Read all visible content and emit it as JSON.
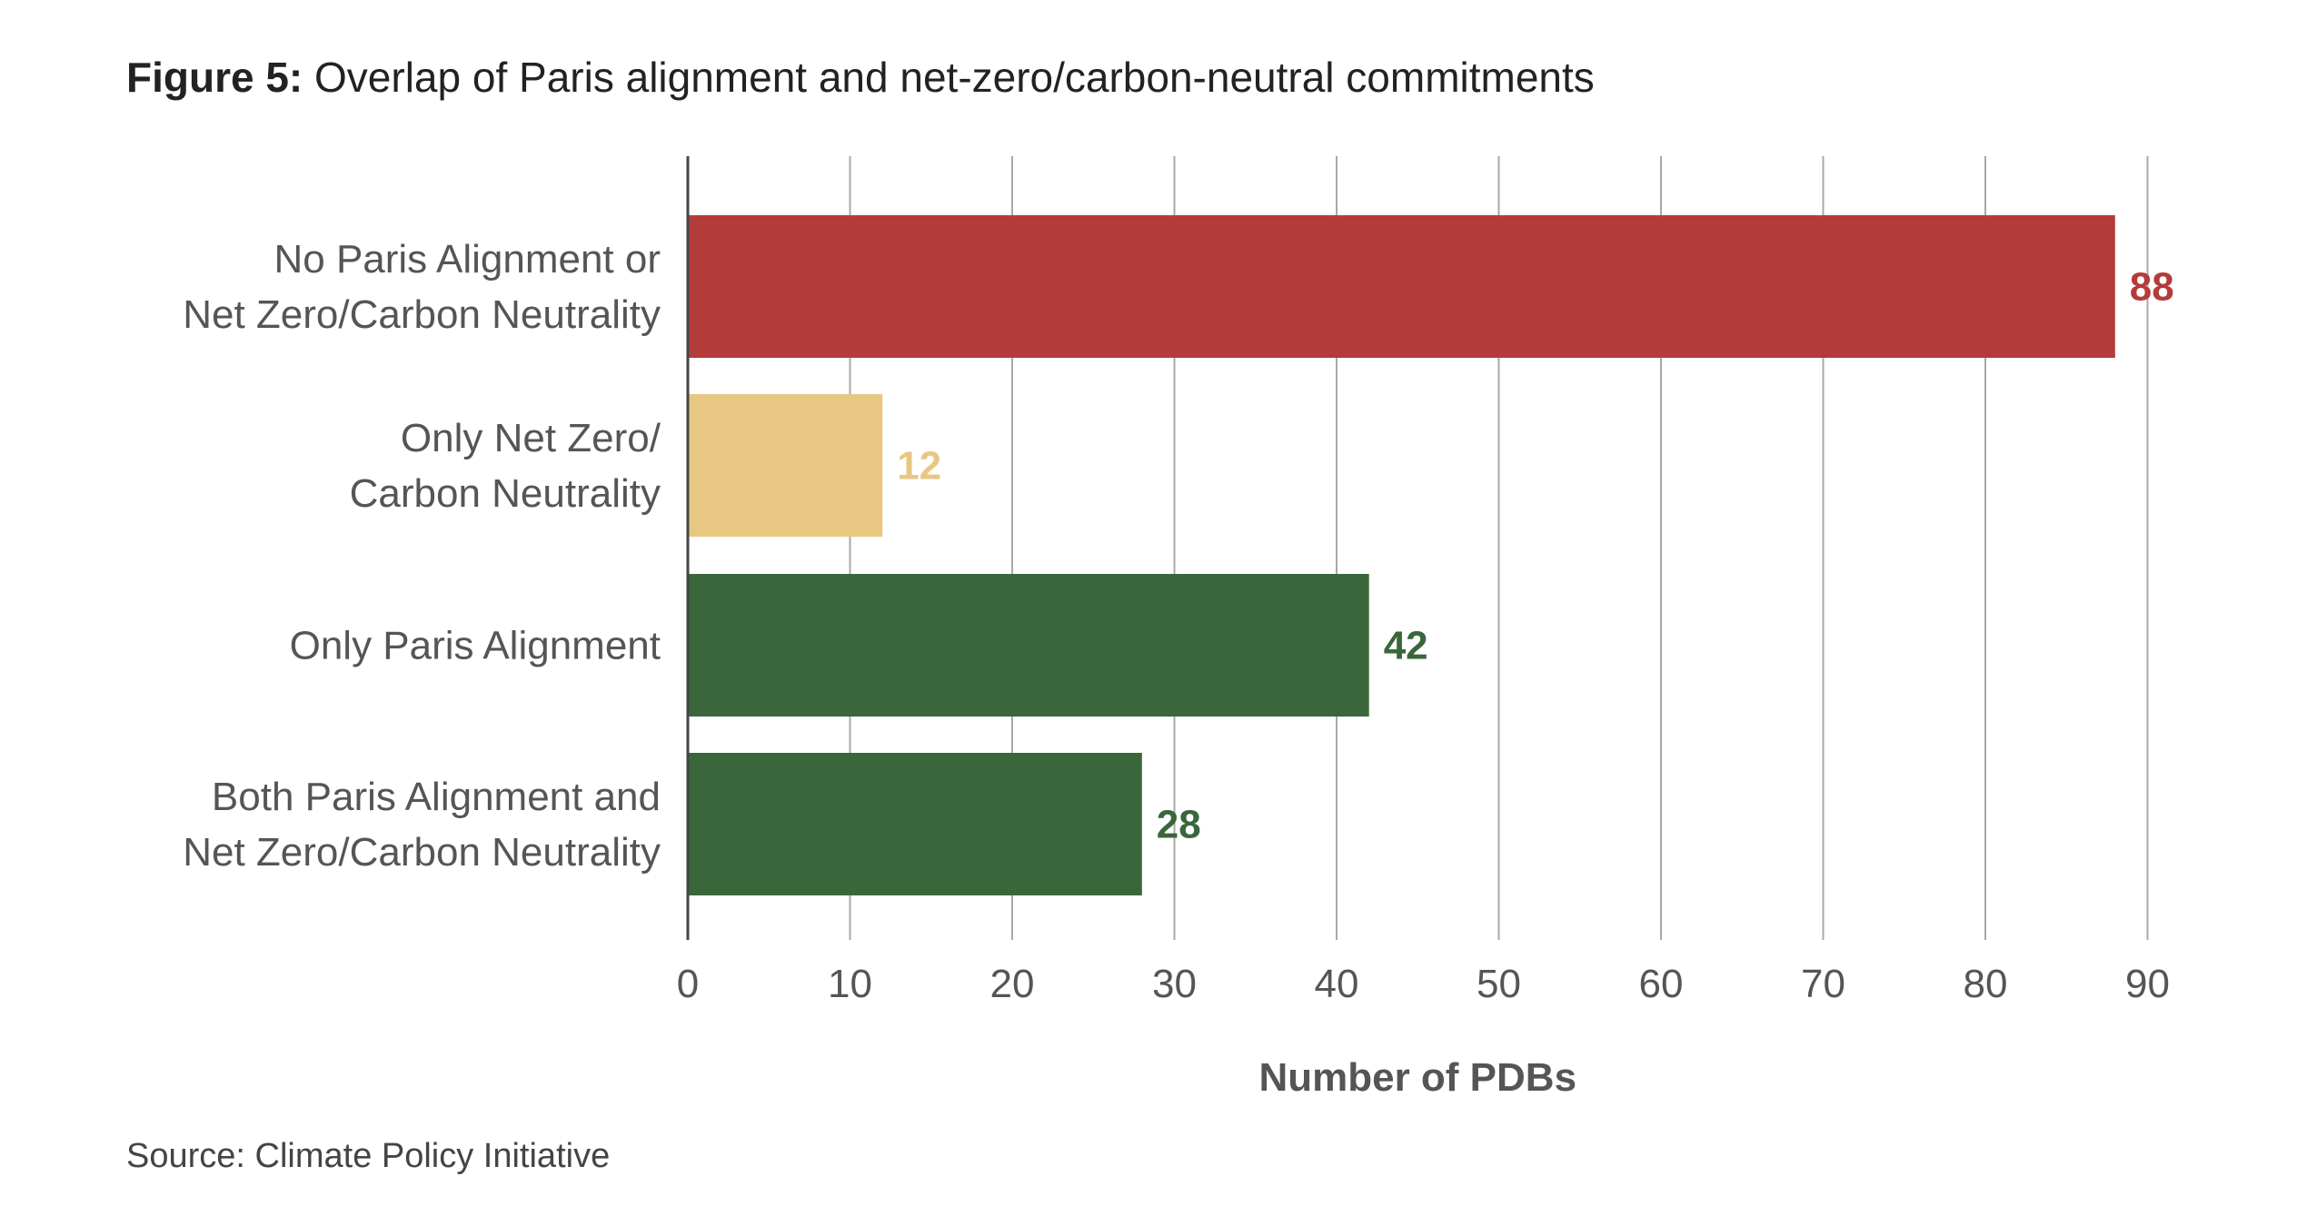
{
  "figure": {
    "label": "Figure 5:",
    "title": "Overlap of Paris alignment and net-zero/carbon-neutral commitments",
    "source": "Source: Climate Policy Initiative"
  },
  "chart_data": {
    "type": "bar",
    "orientation": "horizontal",
    "categories": [
      [
        "No Paris Alignment or",
        "Net Zero/Carbon Neutrality"
      ],
      [
        "Only Net Zero/",
        "Carbon Neutrality"
      ],
      [
        "Only Paris Alignment"
      ],
      [
        "Both Paris Alignment and",
        "Net Zero/Carbon Neutrality"
      ]
    ],
    "values": [
      88,
      12,
      42,
      28
    ],
    "value_labels": [
      "88",
      "12",
      "42",
      "28"
    ],
    "colors": [
      "#b33b3a",
      "#e8c783",
      "#3a663c",
      "#3a663c"
    ],
    "xlabel": "Number of PDBs",
    "xlim": [
      0,
      90
    ],
    "xticks": [
      0,
      10,
      20,
      30,
      40,
      50,
      60,
      70,
      80,
      90
    ],
    "grid": true,
    "legend": "none"
  }
}
